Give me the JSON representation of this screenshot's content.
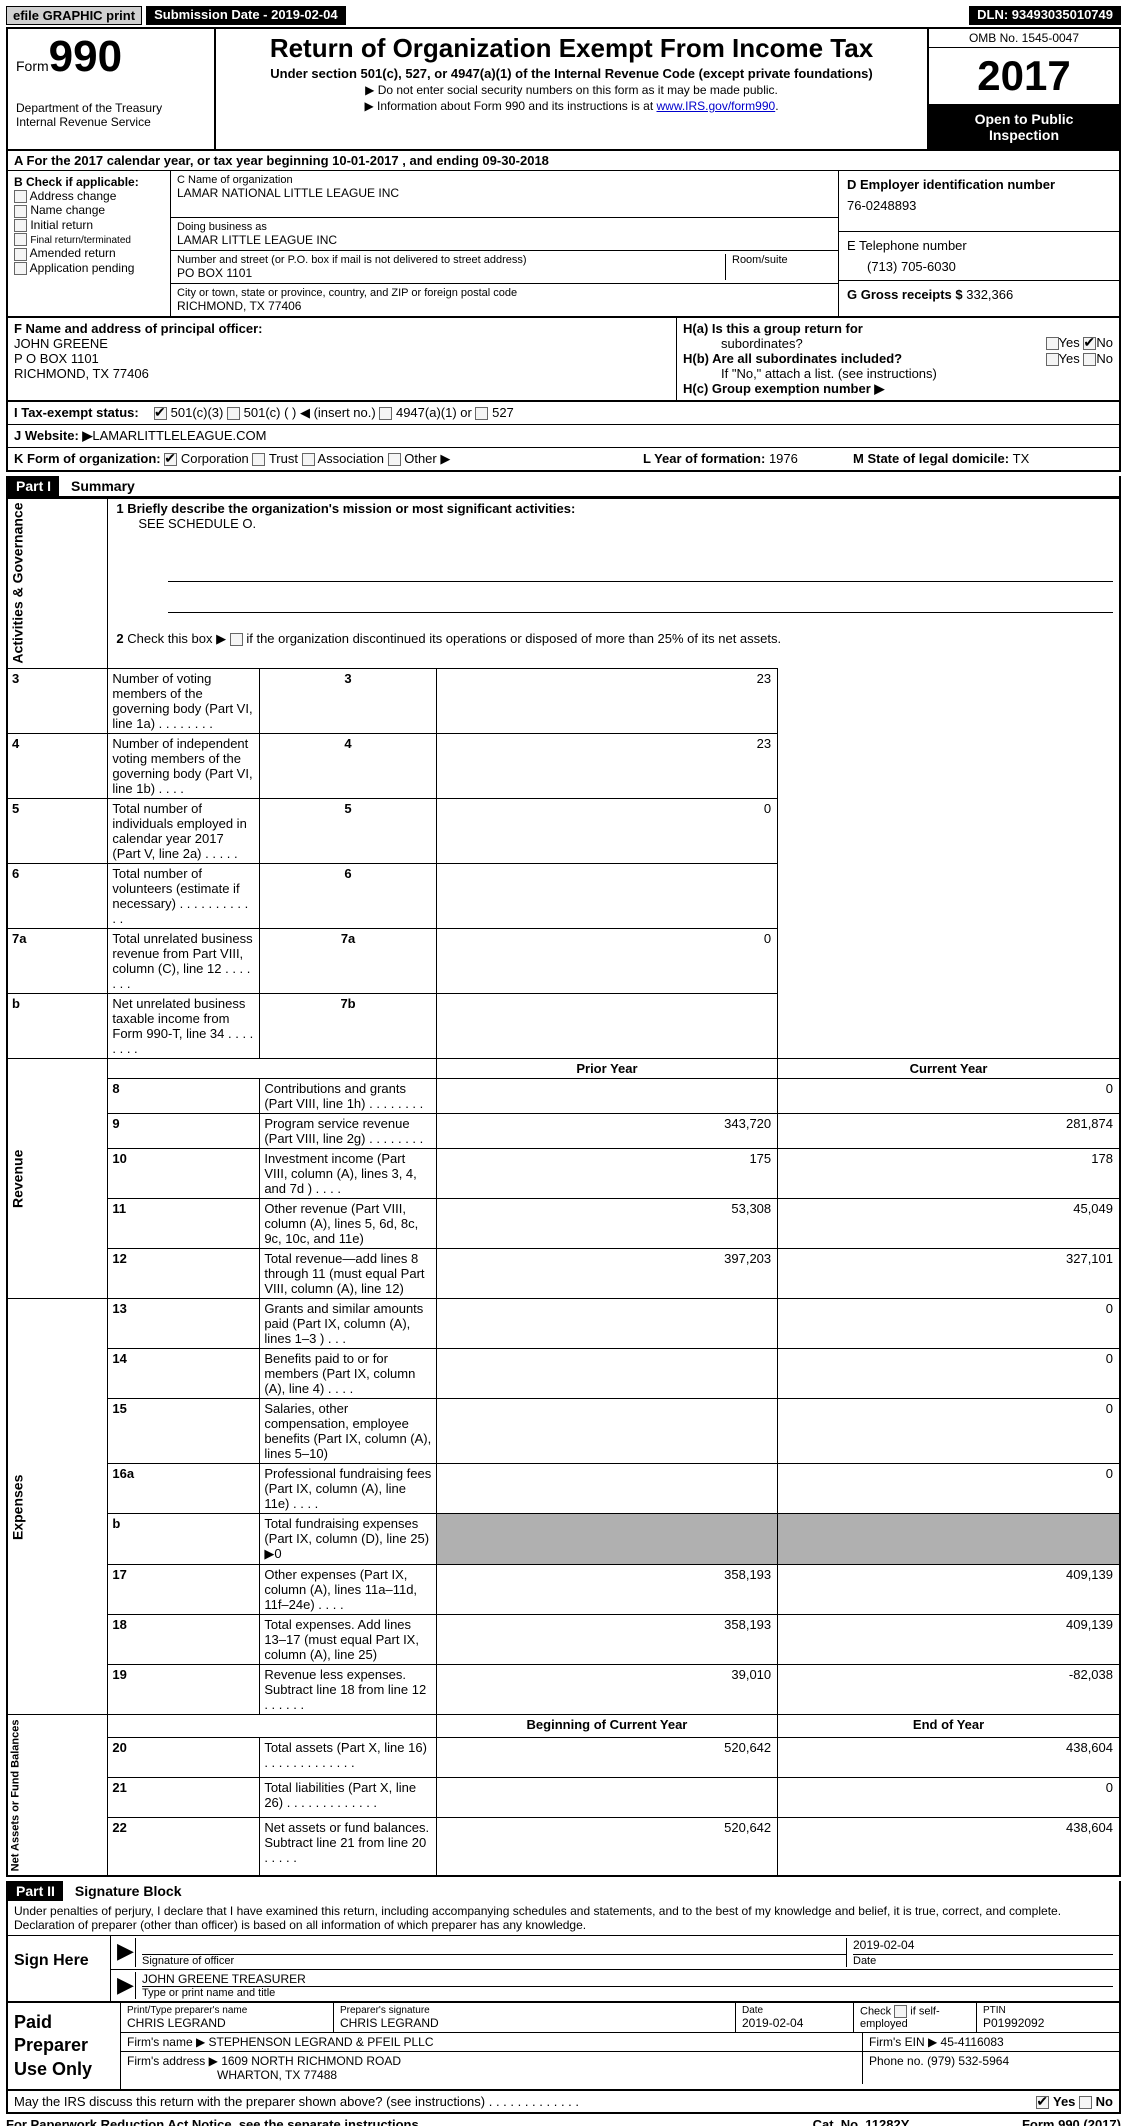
{
  "top": {
    "efile": "efile GRAPHIC print",
    "submission_label": "Submission Date - 2019-02-04",
    "dln_label": "DLN: 93493035010749"
  },
  "header": {
    "form_label": "Form",
    "form_num": "990",
    "dept1": "Department of the Treasury",
    "dept2": "Internal Revenue Service",
    "title": "Return of Organization Exempt From Income Tax",
    "sub": "Under section 501(c), 527, or 4947(a)(1) of the Internal Revenue Code (except private foundations)",
    "note1": "▶ Do not enter social security numbers on this form as it may be made public.",
    "note2": "▶ Information about Form 990 and its instructions is at ",
    "note2_link": "www.IRS.gov/form990",
    "omb": "OMB No. 1545-0047",
    "year": "2017",
    "open1": "Open to Public",
    "open2": "Inspection"
  },
  "section_a": "A  For the 2017 calendar year, or tax year beginning 10-01-2017   , and ending 09-30-2018",
  "col_b": {
    "label": "B Check if applicable:",
    "opts": [
      "Address change",
      "Name change",
      "Initial return",
      "Final return/terminated",
      "Amended return",
      "Application pending"
    ]
  },
  "col_c": {
    "name_label": "C Name of organization",
    "name": "LAMAR NATIONAL LITTLE LEAGUE INC",
    "dba_label": "Doing business as",
    "dba": "LAMAR LITTLE LEAGUE INC",
    "addr_label": "Number and street (or P.O. box if mail is not delivered to street address)",
    "addr": "PO BOX 1101",
    "room_label": "Room/suite",
    "city_label": "City or town, state or province, country, and ZIP or foreign postal code",
    "city": "RICHMOND, TX  77406"
  },
  "col_d": {
    "ein_label": "D Employer identification number",
    "ein": "76-0248893",
    "phone_label": "E Telephone number",
    "phone": "(713) 705-6030",
    "receipts_label": "G Gross receipts $ ",
    "receipts": "332,366"
  },
  "row_f": {
    "label": "F  Name and address of principal officer:",
    "name": "JOHN GREENE",
    "addr1": "P O BOX 1101",
    "addr2": "RICHMOND, TX  77406"
  },
  "row_h": {
    "ha": "H(a)  Is this a group return for",
    "ha2": "subordinates?",
    "hb": "H(b)  Are all subordinates included?",
    "hb_note": "If \"No,\" attach a list. (see instructions)",
    "hc": "H(c)  Group exemption number ▶"
  },
  "row_i": {
    "label": "I   Tax-exempt status:",
    "opt1": "501(c)(3)",
    "opt2": "501(c) (   ) ◀ (insert no.)",
    "opt3": "4947(a)(1) or",
    "opt4": "527"
  },
  "row_j": {
    "label": "J  Website: ▶  ",
    "val": "LAMARLITTLELEAGUE.COM"
  },
  "row_k": {
    "label": "K Form of organization:",
    "opt1": "Corporation",
    "opt2": "Trust",
    "opt3": "Association",
    "opt4": "Other ▶",
    "year_label": "L Year of formation: ",
    "year": "1976",
    "state_label": "M State of legal domicile: ",
    "state": "TX"
  },
  "part1": {
    "header": "Part I",
    "title": "Summary",
    "line1_label": "1   Briefly describe the organization's mission or most significant activities:",
    "line1_val": "SEE SCHEDULE O.",
    "line2": "2   Check this box ▶       if the organization discontinued its operations or disposed of more than 25% of its net assets.",
    "labels": {
      "ag": "Activities & Governance",
      "rev": "Revenue",
      "exp": "Expenses",
      "net": "Net Assets or Fund Balances"
    },
    "hdr_prior": "Prior Year",
    "hdr_curr": "Current Year",
    "hdr_boy": "Beginning of Current Year",
    "hdr_eoy": "End of Year",
    "lines_ag": [
      {
        "n": "3",
        "d": "Number of voting members of the governing body (Part VI, line 1a)   .     .     .     .     .     .     .     .",
        "c": "3",
        "v": "23"
      },
      {
        "n": "4",
        "d": "Number of independent voting members of the governing body (Part VI, line 1b)    .     .     .     .",
        "c": "4",
        "v": "23"
      },
      {
        "n": "5",
        "d": "Total number of individuals employed in calendar year 2017 (Part V, line 2a)    .     .     .     .     .",
        "c": "5",
        "v": "0"
      },
      {
        "n": "6",
        "d": "Total number of volunteers (estimate if necessary)    .     .     .     .     .     .     .     .     .     .     .     .",
        "c": "6",
        "v": ""
      },
      {
        "n": "7a",
        "d": "Total unrelated business revenue from Part VIII, column (C), line 12    .     .     .     .     .     .     .",
        "c": "7a",
        "v": "0"
      },
      {
        "n": "b",
        "d": "Net unrelated business taxable income from Form 990-T, line 34    .     .     .     .     .     .     .     .",
        "c": "7b",
        "v": ""
      }
    ],
    "lines_rev": [
      {
        "n": "8",
        "d": "Contributions and grants (Part VIII, line 1h)    .     .     .     .     .     .     .     .",
        "p": "",
        "c": "0"
      },
      {
        "n": "9",
        "d": "Program service revenue (Part VIII, line 2g)    .     .     .     .     .     .     .     .",
        "p": "343,720",
        "c": "281,874"
      },
      {
        "n": "10",
        "d": "Investment income (Part VIII, column (A), lines 3, 4, and 7d )    .     .     .     .",
        "p": "175",
        "c": "178"
      },
      {
        "n": "11",
        "d": "Other revenue (Part VIII, column (A), lines 5, 6d, 8c, 9c, 10c, and 11e)",
        "p": "53,308",
        "c": "45,049"
      },
      {
        "n": "12",
        "d": "Total revenue—add lines 8 through 11 (must equal Part VIII, column (A), line 12)",
        "p": "397,203",
        "c": "327,101"
      }
    ],
    "lines_exp": [
      {
        "n": "13",
        "d": "Grants and similar amounts paid (Part IX, column (A), lines 1–3 )    .     .     .",
        "p": "",
        "c": "0"
      },
      {
        "n": "14",
        "d": "Benefits paid to or for members (Part IX, column (A), line 4)    .     .     .     .",
        "p": "",
        "c": "0"
      },
      {
        "n": "15",
        "d": "Salaries, other compensation, employee benefits (Part IX, column (A), lines 5–10)",
        "p": "",
        "c": "0"
      },
      {
        "n": "16a",
        "d": "Professional fundraising fees (Part IX, column (A), line 11e)    .     .     .     .",
        "p": "",
        "c": "0"
      },
      {
        "n": "b",
        "d": "Total fundraising expenses (Part IX, column (D), line 25) ▶0",
        "p": "grey",
        "c": "grey"
      },
      {
        "n": "17",
        "d": "Other expenses (Part IX, column (A), lines 11a–11d, 11f–24e)    .     .     .     .",
        "p": "358,193",
        "c": "409,139"
      },
      {
        "n": "18",
        "d": "Total expenses. Add lines 13–17 (must equal Part IX, column (A), line 25)",
        "p": "358,193",
        "c": "409,139"
      },
      {
        "n": "19",
        "d": "Revenue less expenses. Subtract line 18 from line 12    .     .     .     .     .     .",
        "p": "39,010",
        "c": "-82,038"
      }
    ],
    "lines_net": [
      {
        "n": "20",
        "d": "Total assets (Part X, line 16)    .     .     .     .     .     .     .     .     .     .     .     .     .",
        "p": "520,642",
        "c": "438,604"
      },
      {
        "n": "21",
        "d": "Total liabilities (Part X, line 26)  .     .     .     .     .     .     .     .     .     .     .     .     .",
        "p": "",
        "c": "0"
      },
      {
        "n": "22",
        "d": "Net assets or fund balances. Subtract line 21 from line 20  .     .     .     .     .",
        "p": "520,642",
        "c": "438,604"
      }
    ]
  },
  "part2": {
    "header": "Part II",
    "title": "Signature Block",
    "declare": "Under penalties of perjury, I declare that I have examined this return, including accompanying schedules and statements, and to the best of my knowledge and belief, it is true, correct, and complete. Declaration of preparer (other than officer) is based on all information of which preparer has any knowledge.",
    "sign_here": "Sign Here",
    "sig_officer": "Signature of officer",
    "sig_date": "2019-02-04",
    "date_label": "Date",
    "officer_name": "JOHN GREENE TREASURER",
    "type_label": "Type or print name and title",
    "paid_prep": "Paid Preparer Use Only",
    "prep_name_label": "Print/Type preparer's name",
    "prep_name": "CHRIS LEGRAND",
    "prep_sig_label": "Preparer's signature",
    "prep_sig": "CHRIS LEGRAND",
    "prep_date_label": "Date",
    "prep_date": "2019-02-04",
    "self_emp": "Check        if self-employed",
    "ptin_label": "PTIN",
    "ptin": "P01992092",
    "firm_name_label": "Firm's name     ▶ ",
    "firm_name": "STEPHENSON LEGRAND & PFEIL PLLC",
    "firm_ein_label": "Firm's EIN ▶ ",
    "firm_ein": "45-4116083",
    "firm_addr_label": "Firm's address ▶ ",
    "firm_addr1": "1609 NORTH RICHMOND ROAD",
    "firm_addr2": "WHARTON, TX  77488",
    "firm_phone_label": "Phone no. ",
    "firm_phone": "(979) 532-5964"
  },
  "discuss": "May the IRS discuss this return with the preparer shown above? (see instructions)    .     .     .     .     .     .     .     .     .     .     .     .     .",
  "footer": {
    "pra": "For Paperwork Reduction Act Notice, see the separate instructions.",
    "cat": "Cat. No. 11282Y",
    "form": "Form 990 (2017)"
  }
}
